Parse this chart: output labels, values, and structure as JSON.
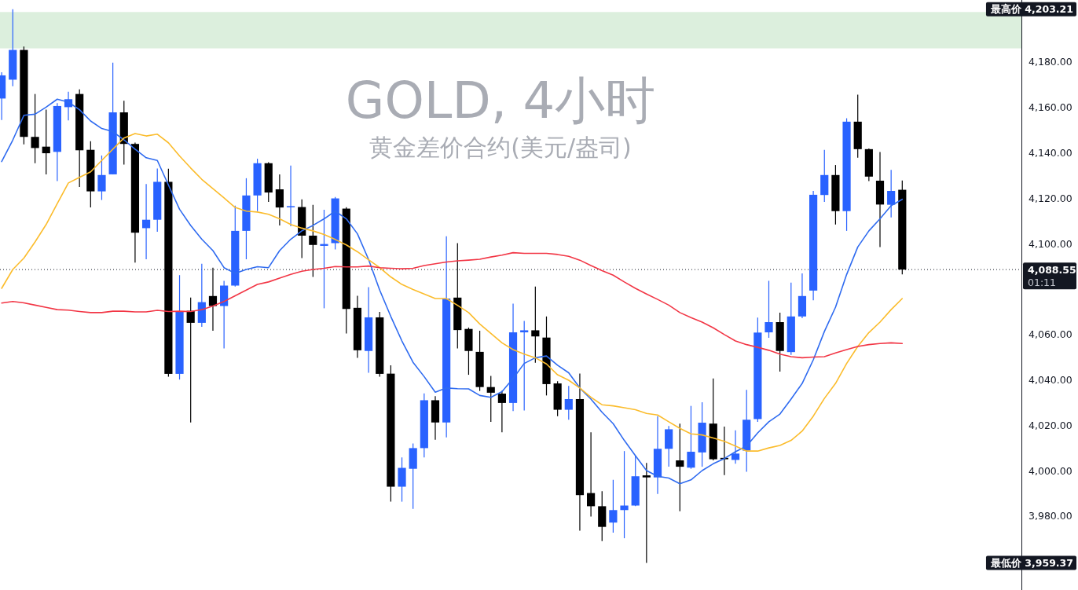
{
  "chart_data": {
    "type": "candlestick",
    "title": "GOLD, 4小时",
    "subtitle": "黄金差价合约(美元/盎司)",
    "categories": [
      null,
      null,
      null,
      null,
      null,
      null,
      null,
      null,
      null,
      null,
      null,
      null,
      null,
      null,
      null,
      null,
      null,
      null,
      null,
      null,
      null,
      null,
      null,
      null,
      null,
      null,
      null,
      null,
      null,
      null,
      null,
      null,
      null,
      null,
      null,
      null,
      null,
      null,
      null,
      null,
      null,
      null,
      null,
      null,
      null,
      null,
      null,
      null,
      null,
      null,
      null,
      null,
      null,
      null,
      null,
      null,
      null,
      null,
      null,
      null,
      null,
      null,
      null,
      null,
      null,
      null,
      null,
      null,
      null,
      null,
      null,
      null,
      null,
      null,
      null,
      null,
      null,
      null,
      null,
      null,
      null,
      null
    ],
    "ohlc": [
      [
        4163.9,
        4175.5,
        4154.4,
        4174.1
      ],
      [
        4172.2,
        4203.21,
        4169.3,
        4185.3
      ],
      [
        4185.3,
        4186.8,
        4143.7,
        4147.0
      ],
      [
        4147.0,
        4165.9,
        4135.4,
        4142.1
      ],
      [
        4142.7,
        4159.0,
        4130.5,
        4139.8
      ],
      [
        4140.4,
        4161.9,
        4127.5,
        4160.6
      ],
      [
        4160.1,
        4166.9,
        4154.3,
        4163.6
      ],
      [
        4165.9,
        4167.9,
        4124.9,
        4141.1
      ],
      [
        4141.3,
        4145.1,
        4115.9,
        4123.0
      ],
      [
        4123.0,
        4138.8,
        4119.2,
        4130.2
      ],
      [
        4130.5,
        4179.7,
        4130.5,
        4157.8
      ],
      [
        4157.8,
        4162.9,
        4134.8,
        4143.9
      ],
      [
        4143.9,
        4144.5,
        4091.6,
        4104.8
      ],
      [
        4106.8,
        4126.2,
        4093.1,
        4110.5
      ],
      [
        4110.5,
        4133.1,
        4105.2,
        4127.2
      ],
      [
        4127.2,
        4133.0,
        4041.4,
        4042.6
      ],
      [
        4042.6,
        4086.1,
        4040.1,
        4070.1
      ],
      [
        4070.4,
        4076.2,
        4021.2,
        4065.1
      ],
      [
        4065.1,
        4091.1,
        4063.3,
        4074.2
      ],
      [
        4076.9,
        4089.4,
        4061.6,
        4072.5
      ],
      [
        4072.5,
        4083.6,
        4053.8,
        4081.5
      ],
      [
        4081.5,
        4116.7,
        4081.1,
        4105.6
      ],
      [
        4105.6,
        4128.8,
        4093.1,
        4121.2
      ],
      [
        4121.2,
        4137.4,
        4114.3,
        4135.4
      ],
      [
        4135.4,
        4135.8,
        4118.4,
        4122.5
      ],
      [
        4123.9,
        4130.5,
        4108.0,
        4115.9
      ],
      [
        4116.0,
        4134.4,
        4107.6,
        4116.5
      ],
      [
        4116.1,
        4119.5,
        4093.6,
        4103.5
      ],
      [
        4103.5,
        4117.1,
        4085.3,
        4099.4
      ],
      [
        4099.0,
        4114.9,
        4071.5,
        4099.8
      ],
      [
        4100.2,
        4120.5,
        4097.4,
        4119.9
      ],
      [
        4115.4,
        4116.0,
        4060.4,
        4071.2
      ],
      [
        4071.7,
        4077.0,
        4049.7,
        4053.0
      ],
      [
        4052.7,
        4080.8,
        4043.1,
        4067.5
      ],
      [
        4067.5,
        4069.9,
        4041.4,
        4042.6
      ],
      [
        4042.7,
        4046.4,
        3986.3,
        3992.9
      ],
      [
        3992.9,
        4005.8,
        3986.3,
        4001.2
      ],
      [
        4000.8,
        4011.9,
        3983.1,
        4009.9
      ],
      [
        4009.9,
        4034.0,
        4005.8,
        4031.0
      ],
      [
        4031.0,
        4032.8,
        4013.6,
        4021.2
      ],
      [
        4021.2,
        4103.2,
        4014.6,
        4075.8
      ],
      [
        4076.2,
        4100.2,
        4053.8,
        4061.9
      ],
      [
        4062.4,
        4063.0,
        4042.2,
        4052.7
      ],
      [
        4052.3,
        4061.6,
        4035.1,
        4036.8
      ],
      [
        4036.8,
        4041.7,
        4021.5,
        4034.3
      ],
      [
        4033.9,
        4035.1,
        4016.9,
        4029.8
      ],
      [
        4029.8,
        4073.5,
        4026.2,
        4060.9
      ],
      [
        4060.9,
        4065.9,
        4026.5,
        4061.8
      ],
      [
        4061.8,
        4081.1,
        4047.5,
        4059.1
      ],
      [
        4058.6,
        4067.9,
        4033.1,
        4038.1
      ],
      [
        4038.4,
        4039.4,
        4024.0,
        4026.8
      ],
      [
        4026.8,
        4037.3,
        4022.4,
        4031.5
      ],
      [
        4031.5,
        4042.7,
        3973.5,
        3989.2
      ],
      [
        3990.1,
        4016.9,
        3979.8,
        3984.3
      ],
      [
        3984.3,
        3990.9,
        3968.9,
        3975.2
      ],
      [
        3977.1,
        3995.9,
        3972.7,
        3982.6
      ],
      [
        3982.6,
        4008.6,
        3970.2,
        3984.6
      ],
      [
        3984.6,
        4006.6,
        3984.3,
        3997.5
      ],
      [
        3997.9,
        4003.4,
        3959.37,
        3997.0
      ],
      [
        3997.0,
        4024.0,
        3989.7,
        4009.6
      ],
      [
        4009.6,
        4019.6,
        4001.7,
        4018.2
      ],
      [
        4004.5,
        4020.7,
        3982.1,
        4001.7
      ],
      [
        4001.3,
        4028.5,
        4000.8,
        4008.3
      ],
      [
        4008.0,
        4030.1,
        4001.7,
        4021.1
      ],
      [
        4020.7,
        4040.6,
        4004.5,
        4005.0
      ],
      [
        4005.6,
        4019.4,
        3998.0,
        4005.0
      ],
      [
        4004.7,
        4017.7,
        4003.0,
        4007.5
      ],
      [
        4008.8,
        4035.6,
        3999.5,
        4022.4
      ],
      [
        4022.7,
        4067.4,
        4021.5,
        4060.8
      ],
      [
        4060.9,
        4083.6,
        4058.5,
        4065.4
      ],
      [
        4065.4,
        4069.6,
        4043.6,
        4052.7
      ],
      [
        4052.2,
        4082.8,
        4051.0,
        4067.9
      ],
      [
        4067.9,
        4086.9,
        4067.1,
        4076.9
      ],
      [
        4079.3,
        4123.2,
        4075.0,
        4121.5
      ],
      [
        4121.4,
        4141.3,
        4118.4,
        4130.2
      ],
      [
        4130.2,
        4134.6,
        4108.4,
        4114.3
      ],
      [
        4114.3,
        4155.2,
        4105.6,
        4153.7
      ],
      [
        4153.7,
        4165.6,
        4137.8,
        4141.6
      ],
      [
        4141.6,
        4141.9,
        4127.5,
        4129.5
      ],
      [
        4127.7,
        4140.3,
        4098.5,
        4117.2
      ],
      [
        4117.1,
        4132.5,
        4111.5,
        4123.2
      ],
      [
        4123.7,
        4127.8,
        4086.4,
        4088.55
      ]
    ],
    "colors": [
      "#2962ff",
      "#2962ff",
      "#000000",
      "#000000",
      "#000000",
      "#2962ff",
      "#2962ff",
      "#000000",
      "#000000",
      "#2962ff",
      "#2962ff",
      "#000000",
      "#000000",
      "#2962ff",
      "#2962ff",
      "#000000",
      "#2962ff",
      "#000000",
      "#2962ff",
      "#000000",
      "#2962ff",
      "#2962ff",
      "#2962ff",
      "#2962ff",
      "#000000",
      "#000000",
      "#2962ff",
      "#000000",
      "#000000",
      "#2962ff",
      "#2962ff",
      "#000000",
      "#000000",
      "#2962ff",
      "#000000",
      "#000000",
      "#2962ff",
      "#2962ff",
      "#2962ff",
      "#000000",
      "#2962ff",
      "#000000",
      "#000000",
      "#000000",
      "#000000",
      "#000000",
      "#2962ff",
      "#2962ff",
      "#000000",
      "#000000",
      "#000000",
      "#2962ff",
      "#000000",
      "#000000",
      "#000000",
      "#2962ff",
      "#2962ff",
      "#2962ff",
      "#000000",
      "#2962ff",
      "#2962ff",
      "#000000",
      "#2962ff",
      "#2962ff",
      "#000000",
      "#000000",
      "#2962ff",
      "#2962ff",
      "#2962ff",
      "#2962ff",
      "#000000",
      "#2962ff",
      "#2962ff",
      "#2962ff",
      "#2962ff",
      "#000000",
      "#2962ff",
      "#000000",
      "#000000",
      "#000000",
      "#2962ff",
      "#000000"
    ],
    "series": [
      {
        "type": "line",
        "color": "#2f6bf0",
        "values": [
          4136.1,
          4145.6,
          4156.5,
          4157.0,
          4160.1,
          4163.6,
          4162.3,
          4159.0,
          4154.0,
          4150.7,
          4149.3,
          4145.7,
          4141.6,
          4137.8,
          4136.6,
          4125.8,
          4115.1,
          4108.0,
          4101.9,
          4096.9,
          4089.4,
          4086.9,
          4088.6,
          4089.8,
          4089.4,
          4096.9,
          4101.9,
          4105.6,
          4108.0,
          4110.9,
          4114.3,
          4110.9,
          4104.3,
          4093.0,
          4079.5,
          4067.9,
          4057.1,
          4047.7,
          4041.4,
          4034.5,
          4036.4,
          4036.1,
          4036.0,
          4033.1,
          4032.3,
          4034.8,
          4040.6,
          4047.2,
          4049.7,
          4050.5,
          4046.4,
          4043.1,
          4036.4,
          4031.5,
          4025.7,
          4020.7,
          4013.3,
          4006.6,
          4000.0,
          3997.5,
          3996.7,
          3994.2,
          3995.9,
          4000.0,
          4003.0,
          4005.3,
          4008.3,
          4010.8,
          4016.6,
          4021.5,
          4024.9,
          4031.5,
          4038.4,
          4048.8,
          4061.3,
          4072.0,
          4086.4,
          4098.5,
          4105.6,
          4110.9,
          4116.7,
          4119.5
        ]
      },
      {
        "type": "line",
        "color": "#fbbc2c",
        "values": [
          4080.3,
          4088.6,
          4093.6,
          4100.7,
          4108.4,
          4117.6,
          4126.7,
          4129.2,
          4131.6,
          4136.6,
          4141.6,
          4146.5,
          4148.5,
          4147.4,
          4148.2,
          4144.4,
          4138.6,
          4133.3,
          4128.3,
          4124.2,
          4120.1,
          4115.9,
          4114.3,
          4113.9,
          4112.9,
          4110.9,
          4108.4,
          4106.8,
          4105.6,
          4104.0,
          4101.8,
          4099.4,
          4096.4,
          4092.9,
          4089.4,
          4085.3,
          4082.0,
          4079.8,
          4077.8,
          4075.8,
          4075.8,
          4072.8,
          4069.6,
          4064.6,
          4060.4,
          4056.3,
          4053.3,
          4051.3,
          4049.7,
          4047.0,
          4042.2,
          4039.8,
          4036.4,
          4032.3,
          4029.0,
          4028.5,
          4027.7,
          4026.8,
          4025.2,
          4024.5,
          4021.5,
          4018.6,
          4016.2,
          4015.7,
          4014.4,
          4012.9,
          4010.8,
          4008.6,
          4008.6,
          4010.0,
          4011.1,
          4013.3,
          4017.4,
          4024.0,
          4031.8,
          4038.4,
          4047.2,
          4054.7,
          4060.8,
          4065.4,
          4070.9,
          4075.8
        ]
      },
      {
        "type": "line",
        "color": "#f23645",
        "values": [
          4073.8,
          4074.5,
          4073.9,
          4072.9,
          4071.9,
          4070.9,
          4070.7,
          4070.1,
          4069.6,
          4069.6,
          4070.2,
          4070.2,
          4069.9,
          4069.9,
          4070.6,
          4070.1,
          4070.2,
          4070.1,
          4070.9,
          4072.5,
          4074.5,
          4077.0,
          4079.5,
          4082.0,
          4083.1,
          4084.8,
          4086.4,
          4087.8,
          4088.6,
          4089.1,
          4089.9,
          4089.7,
          4089.7,
          4090.1,
          4089.4,
          4089.1,
          4088.9,
          4089.1,
          4090.3,
          4091.1,
          4091.9,
          4092.4,
          4092.7,
          4093.1,
          4094.1,
          4094.9,
          4096.0,
          4095.7,
          4095.7,
          4095.7,
          4095.2,
          4094.4,
          4092.7,
          4090.3,
          4088.1,
          4086.1,
          4083.1,
          4080.3,
          4077.8,
          4075.4,
          4072.9,
          4069.6,
          4067.4,
          4065.4,
          4062.9,
          4059.9,
          4057.1,
          4055.5,
          4054.3,
          4053.0,
          4051.3,
          4050.2,
          4049.7,
          4050.0,
          4050.2,
          4051.8,
          4053.3,
          4054.7,
          4055.5,
          4056.0,
          4056.3,
          4056.0
        ]
      }
    ],
    "ylim": [
      3947.4,
      4207.3
    ],
    "yticks": [
      {
        "value": 3980,
        "label": "3,980.00"
      },
      {
        "value": 4000,
        "label": "4,000.00"
      },
      {
        "value": 4020,
        "label": "4,020.00"
      },
      {
        "value": 4040,
        "label": "4,040.00"
      },
      {
        "value": 4060,
        "label": "4,060.00"
      },
      {
        "value": 4100,
        "label": "4,100.00"
      },
      {
        "value": 4120,
        "label": "4,120.00"
      },
      {
        "value": 4140,
        "label": "4,140.00"
      },
      {
        "value": 4160,
        "label": "4,160.00"
      },
      {
        "value": 4180,
        "label": "4,180.00"
      }
    ],
    "bands": [
      {
        "axis": "y",
        "from": 4186,
        "to": 4202,
        "color": "#dcefdd"
      }
    ],
    "ref_lines": [
      {
        "axis": "y",
        "value": 4088.55,
        "label": "4,088.55\n01:11",
        "color": "#131722",
        "line_style": "dotted"
      }
    ],
    "annotations": [
      "最高价 4,203.21",
      "最低价 3,959.37"
    ],
    "tick_labels": "y"
  }
}
